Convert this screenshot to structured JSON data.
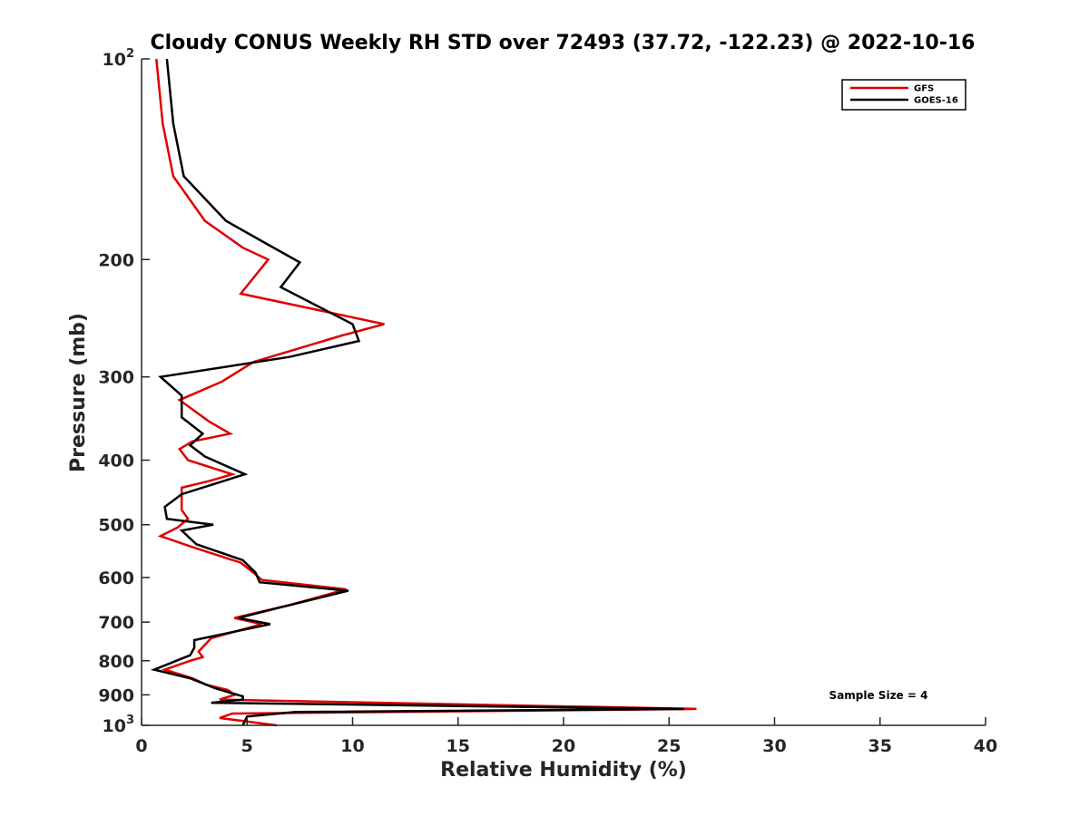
{
  "chart_data": {
    "type": "line",
    "title": "Cloudy CONUS Weekly RH STD over 72493 (37.72, -122.23) @ 2022-10-16",
    "xlabel": "Relative Humidity (%)",
    "ylabel": "Pressure (mb)",
    "xlim": [
      0,
      40
    ],
    "ylim": [
      100,
      1000
    ],
    "yscale": "log",
    "y_reversed": true,
    "grid": false,
    "legend_position": "top-right",
    "x_ticks": [
      "0",
      "5",
      "10",
      "15",
      "20",
      "25",
      "30",
      "35",
      "40"
    ],
    "y_ticks": [
      {
        "value": 100,
        "base": "10",
        "exp": "2"
      },
      {
        "value": 200,
        "label": "200"
      },
      {
        "value": 300,
        "label": "300"
      },
      {
        "value": 400,
        "label": "400"
      },
      {
        "value": 500,
        "label": "500"
      },
      {
        "value": 600,
        "label": "600"
      },
      {
        "value": 700,
        "label": "700"
      },
      {
        "value": 800,
        "label": "800"
      },
      {
        "value": 900,
        "label": "900"
      },
      {
        "value": 1000,
        "base": "10",
        "exp": "3"
      }
    ],
    "annotation": "Sample Size = 4",
    "series": [
      {
        "name": "GFS",
        "color": "#e00000",
        "points": [
          [
            0.7,
            100
          ],
          [
            1.0,
            125
          ],
          [
            1.5,
            150
          ],
          [
            3.0,
            175
          ],
          [
            4.8,
            192
          ],
          [
            6.0,
            200
          ],
          [
            4.7,
            225
          ],
          [
            11.5,
            250
          ],
          [
            9.5,
            260
          ],
          [
            5.3,
            285
          ],
          [
            3.8,
            305
          ],
          [
            1.8,
            325
          ],
          [
            3.2,
            350
          ],
          [
            4.2,
            365
          ],
          [
            2.4,
            375
          ],
          [
            1.8,
            385
          ],
          [
            2.2,
            400
          ],
          [
            4.3,
            420
          ],
          [
            3.2,
            430
          ],
          [
            1.9,
            440
          ],
          [
            1.9,
            475
          ],
          [
            2.2,
            490
          ],
          [
            1.7,
            505
          ],
          [
            0.9,
            520
          ],
          [
            2.4,
            540
          ],
          [
            4.7,
            570
          ],
          [
            5.3,
            590
          ],
          [
            5.7,
            605
          ],
          [
            9.7,
            625
          ],
          [
            7.0,
            660
          ],
          [
            4.4,
            690
          ],
          [
            5.7,
            705
          ],
          [
            3.3,
            740
          ],
          [
            2.7,
            775
          ],
          [
            2.9,
            790
          ],
          [
            2.3,
            800
          ],
          [
            1.1,
            825
          ],
          [
            2.4,
            850
          ],
          [
            3.1,
            870
          ],
          [
            4.1,
            885
          ],
          [
            4.4,
            900
          ],
          [
            3.7,
            915
          ],
          [
            26.3,
            945
          ],
          [
            4.3,
            960
          ],
          [
            3.7,
            975
          ],
          [
            6.4,
            1000
          ]
        ]
      },
      {
        "name": "GOES-16",
        "color": "#000000",
        "points": [
          [
            1.2,
            100
          ],
          [
            1.5,
            125
          ],
          [
            2.0,
            150
          ],
          [
            4.0,
            175
          ],
          [
            6.0,
            190
          ],
          [
            7.5,
            202
          ],
          [
            6.6,
            220
          ],
          [
            10.0,
            250
          ],
          [
            10.3,
            265
          ],
          [
            7.0,
            280
          ],
          [
            0.9,
            300
          ],
          [
            1.9,
            320
          ],
          [
            1.9,
            345
          ],
          [
            2.9,
            365
          ],
          [
            2.3,
            380
          ],
          [
            3.0,
            395
          ],
          [
            4.9,
            420
          ],
          [
            1.9,
            450
          ],
          [
            1.1,
            470
          ],
          [
            1.2,
            490
          ],
          [
            3.4,
            500
          ],
          [
            1.9,
            510
          ],
          [
            2.6,
            535
          ],
          [
            4.8,
            565
          ],
          [
            5.4,
            590
          ],
          [
            5.6,
            610
          ],
          [
            9.8,
            628
          ],
          [
            6.6,
            665
          ],
          [
            4.6,
            690
          ],
          [
            6.1,
            705
          ],
          [
            2.5,
            745
          ],
          [
            2.5,
            765
          ],
          [
            2.3,
            785
          ],
          [
            0.6,
            825
          ],
          [
            2.3,
            850
          ],
          [
            3.5,
            880
          ],
          [
            4.8,
            905
          ],
          [
            4.8,
            915
          ],
          [
            3.3,
            925
          ],
          [
            25.7,
            945
          ],
          [
            7.3,
            955
          ],
          [
            5.0,
            970
          ],
          [
            4.9,
            985
          ],
          [
            4.8,
            1000
          ]
        ]
      }
    ]
  }
}
